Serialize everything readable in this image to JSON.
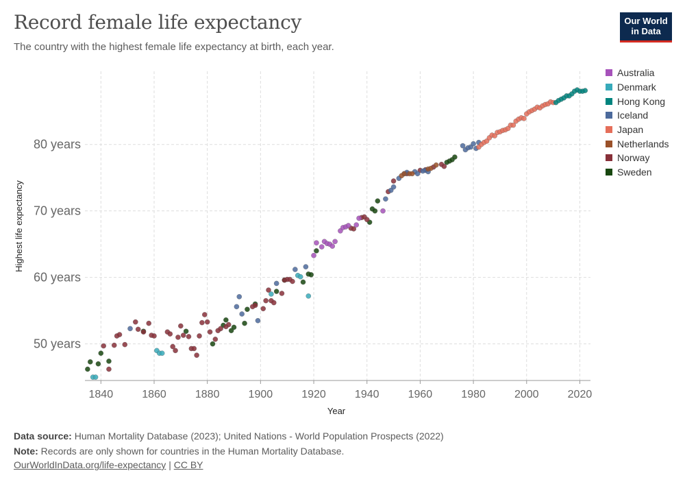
{
  "title": "Record female life expectancy",
  "subtitle": "The country with the highest female life expectancy at birth, each year.",
  "logo": {
    "line1": "Our World",
    "line2": "in Data"
  },
  "footer": {
    "source_label": "Data source:",
    "source_text": "Human Mortality Database (2023); United Nations - World Population Prospects (2022)",
    "note_label": "Note:",
    "note_text": "Records are only shown for countries in the Human Mortality Database.",
    "link1": "OurWorldInData.org/life-expectancy",
    "separator": "|",
    "link2": "CC BY"
  },
  "colors": {
    "Australia": "#a652ba",
    "Denmark": "#38aaba",
    "Hong Kong": "#00847e",
    "Iceland": "#4c6a9c",
    "Japan": "#e56e5a",
    "Netherlands": "#9a5129",
    "Norway": "#883039",
    "Sweden": "#18470f"
  },
  "chart_data": {
    "type": "scatter",
    "xlabel": "Year",
    "ylabel": "Highest life expectancy",
    "xlim": [
      1834,
      2024
    ],
    "ylim": [
      44.5,
      91
    ],
    "x_ticks": [
      1840,
      1860,
      1880,
      1900,
      1920,
      1940,
      1960,
      1980,
      2000,
      2020
    ],
    "y_ticks": [
      50,
      60,
      70,
      80
    ],
    "y_tick_labels": [
      "50 years",
      "60 years",
      "70 years",
      "80 years"
    ],
    "legend": [
      "Australia",
      "Denmark",
      "Hong Kong",
      "Iceland",
      "Japan",
      "Netherlands",
      "Norway",
      "Sweden"
    ],
    "series": [
      {
        "name": "Sweden",
        "points": [
          [
            1835,
            46.2
          ],
          [
            1836,
            47.3
          ],
          [
            1839,
            47.0
          ],
          [
            1840,
            48.6
          ],
          [
            1843,
            47.4
          ],
          [
            1856,
            51.9
          ],
          [
            1872,
            51.9
          ],
          [
            1882,
            50.0
          ],
          [
            1886,
            52.8
          ],
          [
            1887,
            53.6
          ],
          [
            1889,
            52.0
          ],
          [
            1890,
            52.5
          ],
          [
            1894,
            53.1
          ],
          [
            1895,
            55.2
          ],
          [
            1898,
            56.0
          ],
          [
            1906,
            57.9
          ],
          [
            1909,
            59.6
          ],
          [
            1916,
            59.3
          ],
          [
            1918,
            60.5
          ],
          [
            1919,
            60.4
          ],
          [
            1921,
            64.0
          ],
          [
            1941,
            68.3
          ],
          [
            1942,
            70.3
          ],
          [
            1943,
            70.0
          ],
          [
            1944,
            71.5
          ],
          [
            1970,
            77.3
          ],
          [
            1971,
            77.5
          ],
          [
            1972,
            77.7
          ],
          [
            1973,
            78.1
          ]
        ]
      },
      {
        "name": "Denmark",
        "points": [
          [
            1837,
            45.0
          ],
          [
            1838,
            45.0
          ],
          [
            1861,
            49.0
          ],
          [
            1862,
            48.6
          ],
          [
            1863,
            48.6
          ],
          [
            1904,
            57.5
          ],
          [
            1914,
            60.3
          ],
          [
            1915,
            60.1
          ],
          [
            1918,
            57.2
          ]
        ]
      },
      {
        "name": "Norway",
        "points": [
          [
            1841,
            49.7
          ],
          [
            1843,
            46.2
          ],
          [
            1845,
            49.8
          ],
          [
            1846,
            51.2
          ],
          [
            1847,
            51.4
          ],
          [
            1849,
            49.9
          ],
          [
            1853,
            53.3
          ],
          [
            1854,
            52.2
          ],
          [
            1856,
            51.8
          ],
          [
            1858,
            53.1
          ],
          [
            1859,
            51.3
          ],
          [
            1860,
            51.2
          ],
          [
            1865,
            51.8
          ],
          [
            1866,
            51.5
          ],
          [
            1867,
            49.6
          ],
          [
            1868,
            49.0
          ],
          [
            1869,
            51.0
          ],
          [
            1870,
            52.7
          ],
          [
            1871,
            51.3
          ],
          [
            1873,
            51.1
          ],
          [
            1874,
            49.3
          ],
          [
            1875,
            49.3
          ],
          [
            1876,
            48.3
          ],
          [
            1877,
            51.2
          ],
          [
            1878,
            53.2
          ],
          [
            1879,
            54.4
          ],
          [
            1880,
            53.3
          ],
          [
            1881,
            51.8
          ],
          [
            1883,
            50.7
          ],
          [
            1884,
            52.0
          ],
          [
            1885,
            52.3
          ],
          [
            1887,
            52.6
          ],
          [
            1888,
            52.9
          ],
          [
            1897,
            55.6
          ],
          [
            1898,
            55.8
          ],
          [
            1901,
            55.3
          ],
          [
            1902,
            56.5
          ],
          [
            1903,
            58.1
          ],
          [
            1904,
            56.5
          ],
          [
            1905,
            56.2
          ],
          [
            1908,
            57.6
          ],
          [
            1909,
            59.6
          ],
          [
            1910,
            59.7
          ],
          [
            1911,
            59.7
          ],
          [
            1912,
            59.4
          ],
          [
            1934,
            67.4
          ],
          [
            1935,
            67.3
          ],
          [
            1938,
            69.0
          ],
          [
            1939,
            69.1
          ],
          [
            1940,
            68.7
          ],
          [
            1948,
            72.9
          ],
          [
            1950,
            74.5
          ],
          [
            1955,
            75.6
          ],
          [
            1960,
            76.1
          ],
          [
            1962,
            76.2
          ],
          [
            1965,
            76.6
          ],
          [
            1968,
            77.0
          ],
          [
            1969,
            76.7
          ]
        ]
      },
      {
        "name": "Iceland",
        "points": [
          [
            1851,
            52.3
          ],
          [
            1891,
            55.6
          ],
          [
            1892,
            57.1
          ],
          [
            1893,
            54.5
          ],
          [
            1899,
            53.5
          ],
          [
            1906,
            59.1
          ],
          [
            1913,
            61.2
          ],
          [
            1917,
            61.6
          ],
          [
            1947,
            71.8
          ],
          [
            1949,
            73.1
          ],
          [
            1950,
            73.6
          ],
          [
            1952,
            74.9
          ],
          [
            1954,
            75.6
          ],
          [
            1955,
            75.8
          ],
          [
            1958,
            75.9
          ],
          [
            1959,
            75.6
          ],
          [
            1961,
            76.0
          ],
          [
            1962,
            76.1
          ],
          [
            1963,
            75.9
          ],
          [
            1976,
            79.8
          ],
          [
            1977,
            79.2
          ],
          [
            1978,
            79.5
          ],
          [
            1979,
            79.6
          ],
          [
            1980,
            80.1
          ],
          [
            1981,
            79.4
          ],
          [
            1982,
            80.3
          ]
        ]
      },
      {
        "name": "Australia",
        "points": [
          [
            1920,
            63.3
          ],
          [
            1921,
            65.2
          ],
          [
            1923,
            64.6
          ],
          [
            1924,
            65.4
          ],
          [
            1925,
            65.1
          ],
          [
            1926,
            65.0
          ],
          [
            1927,
            64.7
          ],
          [
            1928,
            65.4
          ],
          [
            1930,
            67.0
          ],
          [
            1931,
            67.5
          ],
          [
            1932,
            67.6
          ],
          [
            1933,
            67.8
          ],
          [
            1936,
            67.9
          ],
          [
            1937,
            68.9
          ],
          [
            1946,
            70.0
          ]
        ]
      },
      {
        "name": "Netherlands",
        "points": [
          [
            1953,
            75.3
          ],
          [
            1954,
            75.6
          ],
          [
            1956,
            75.6
          ],
          [
            1957,
            75.6
          ],
          [
            1963,
            76.3
          ],
          [
            1964,
            76.4
          ],
          [
            1966,
            76.9
          ]
        ]
      },
      {
        "name": "Japan",
        "points": [
          [
            1982,
            79.6
          ],
          [
            1983,
            80.0
          ],
          [
            1984,
            80.3
          ],
          [
            1985,
            80.5
          ],
          [
            1986,
            81.0
          ],
          [
            1987,
            81.4
          ],
          [
            1988,
            81.3
          ],
          [
            1989,
            81.8
          ],
          [
            1990,
            81.9
          ],
          [
            1991,
            82.1
          ],
          [
            1992,
            82.2
          ],
          [
            1993,
            82.4
          ],
          [
            1994,
            82.9
          ],
          [
            1995,
            82.9
          ],
          [
            1996,
            83.5
          ],
          [
            1997,
            83.8
          ],
          [
            1998,
            84.0
          ],
          [
            1999,
            83.9
          ],
          [
            2000,
            84.6
          ],
          [
            2001,
            84.9
          ],
          [
            2002,
            85.1
          ],
          [
            2003,
            85.3
          ],
          [
            2004,
            85.6
          ],
          [
            2005,
            85.5
          ],
          [
            2006,
            85.8
          ],
          [
            2007,
            86.0
          ],
          [
            2008,
            86.1
          ],
          [
            2009,
            86.4
          ],
          [
            2010,
            86.3
          ]
        ]
      },
      {
        "name": "Hong Kong",
        "points": [
          [
            2011,
            86.3
          ],
          [
            2012,
            86.6
          ],
          [
            2013,
            86.8
          ],
          [
            2014,
            87.0
          ],
          [
            2015,
            87.3
          ],
          [
            2016,
            87.3
          ],
          [
            2017,
            87.6
          ],
          [
            2018,
            88.0
          ],
          [
            2019,
            88.2
          ],
          [
            2020,
            88.0
          ],
          [
            2021,
            88.0
          ],
          [
            2022,
            88.1
          ]
        ]
      }
    ]
  }
}
